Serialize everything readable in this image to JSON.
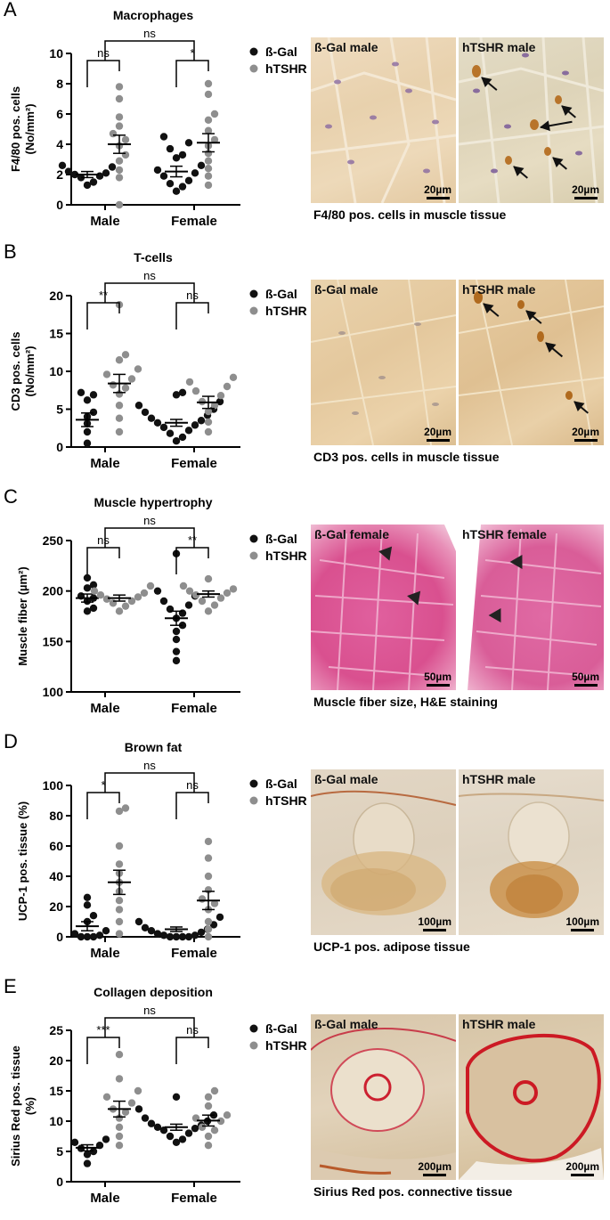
{
  "colors": {
    "bgal": "#111111",
    "htshr": "#8e8e8e"
  },
  "panels": [
    {
      "letter": "A",
      "images": {
        "left_label": "ß-Gal male",
        "right_label": "hTSHR male",
        "left_scale": "20µm",
        "right_scale": "20µm",
        "caption": "F4/80 pos. cells in muscle tissue"
      },
      "chart": {
        "type": "scatter",
        "title": "Macrophages",
        "ylabel": "F4/80 pos. cells\n(No/mm²)",
        "ylim": [
          0,
          10
        ],
        "yticks": [
          0,
          2,
          4,
          6,
          8,
          10
        ],
        "categories": [
          "Male",
          "Female"
        ],
        "legend": [
          "ß-Gal",
          "hTSHR"
        ],
        "series": [
          {
            "name": "ß-Gal",
            "values": [
              [
                1.3,
                1.5,
                1.8,
                1.9,
                2.0,
                2.1,
                2.2,
                2.5,
                2.6
              ],
              [
                0.9,
                1.2,
                1.4,
                1.6,
                1.9,
                2.1,
                2.3,
                2.6,
                3.1,
                3.3,
                3.7,
                4.1,
                4.5
              ]
            ],
            "mean": [
              2.0,
              2.2
            ],
            "sem": [
              0.2,
              0.35
            ]
          },
          {
            "name": "hTSHR",
            "values": [
              [
                0.0,
                1.8,
                2.3,
                2.9,
                3.3,
                3.9,
                4.3,
                4.7,
                5.2,
                5.8,
                7.0,
                7.8
              ],
              [
                1.3,
                1.9,
                2.4,
                2.9,
                3.4,
                3.9,
                4.3,
                4.9,
                5.6,
                6.0,
                7.3,
                8.0
              ]
            ],
            "mean": [
              4.0,
              4.1
            ],
            "sem": [
              0.6,
              0.6
            ]
          }
        ],
        "significance": [
          {
            "label": "ns",
            "between": "Male"
          },
          {
            "label": "*",
            "between": "Female"
          },
          {
            "label": "ns",
            "between": "Male-Female"
          }
        ]
      }
    },
    {
      "letter": "B",
      "images": {
        "left_label": "ß-Gal male",
        "right_label": "hTSHR male",
        "left_scale": "20µm",
        "right_scale": "20µm",
        "caption": "CD3 pos. cells in muscle tissue"
      },
      "chart": {
        "type": "scatter",
        "title": "T-cells",
        "ylabel": "CD3 pos. cells\n(No/mm²)",
        "ylim": [
          0,
          20
        ],
        "yticks": [
          0,
          5,
          10,
          15,
          20
        ],
        "categories": [
          "Male",
          "Female"
        ],
        "legend": [
          "ß-Gal",
          "hTSHR"
        ],
        "series": [
          {
            "name": "ß-Gal",
            "values": [
              [
                0.5,
                2.0,
                3.1,
                4.0,
                4.6,
                6.2,
                6.9,
                7.2
              ],
              [
                0.8,
                1.3,
                1.8,
                2.2,
                2.6,
                2.9,
                3.2,
                3.5,
                3.8,
                4.2,
                4.6,
                5.0,
                5.5,
                6.0,
                6.9,
                7.2
              ]
            ],
            "mean": [
              3.6,
              3.2
            ],
            "sem": [
              0.9,
              0.45
            ]
          },
          {
            "name": "hTSHR",
            "values": [
              [
                2.0,
                3.8,
                5.5,
                7.0,
                7.8,
                8.2,
                9.0,
                9.6,
                10.3,
                11.5,
                12.2,
                18.8
              ],
              [
                2.0,
                3.3,
                4.7,
                5.5,
                6.0,
                6.8,
                7.4,
                8.0,
                8.6,
                9.2
              ]
            ],
            "mean": [
              8.4,
              5.9
            ],
            "sem": [
              1.2,
              0.8
            ]
          }
        ],
        "significance": [
          {
            "label": "**",
            "between": "Male"
          },
          {
            "label": "ns",
            "between": "Female"
          },
          {
            "label": "ns",
            "between": "Male-Female"
          }
        ]
      }
    },
    {
      "letter": "C",
      "images": {
        "left_label": "ß-Gal female",
        "right_label": "hTSHR female",
        "left_scale": "50µm",
        "right_scale": "50µm",
        "caption": "Muscle fiber size, H&E staining"
      },
      "chart": {
        "type": "scatter",
        "title": "Muscle hypertrophy",
        "ylabel": "Muscle fiber (µm²)",
        "ylim": [
          100,
          250
        ],
        "yticks": [
          100,
          150,
          200,
          250
        ],
        "categories": [
          "Male",
          "Female"
        ],
        "legend": [
          "ß-Gal",
          "hTSHR"
        ],
        "series": [
          {
            "name": "ß-Gal",
            "values": [
              [
                180,
                183,
                190,
                193,
                195,
                203,
                206,
                213
              ],
              [
                131,
                140,
                152,
                160,
                166,
                173,
                178,
                182,
                186,
                190,
                195,
                200,
                237
              ]
            ],
            "mean": [
              193,
              173
            ],
            "sem": [
              4,
              7
            ]
          },
          {
            "name": "hTSHR",
            "values": [
              [
                180,
                185,
                188,
                190,
                192,
                194,
                196,
                198,
                200,
                205
              ],
              [
                180,
                186,
                190,
                193,
                196,
                198,
                200,
                202,
                205,
                212
              ]
            ],
            "mean": [
              193,
              197
            ],
            "sem": [
              3,
              3
            ]
          }
        ],
        "significance": [
          {
            "label": "ns",
            "between": "Male"
          },
          {
            "label": "**",
            "between": "Female"
          },
          {
            "label": "ns",
            "between": "Male-Female"
          }
        ]
      }
    },
    {
      "letter": "D",
      "images": {
        "left_label": "ß-Gal male",
        "right_label": "hTSHR male",
        "left_scale": "100µm",
        "right_scale": "100µm",
        "caption": "UCP-1 pos. adipose tissue"
      },
      "chart": {
        "type": "scatter",
        "title": "Brown fat",
        "ylabel": "UCP-1 pos. tissue (%)",
        "ylim": [
          0,
          100
        ],
        "yticks": [
          0,
          20,
          40,
          60,
          80,
          100
        ],
        "categories": [
          "Male",
          "Female"
        ],
        "legend": [
          "ß-Gal",
          "hTSHR"
        ],
        "series": [
          {
            "name": "ß-Gal",
            "values": [
              [
                0,
                0,
                0,
                1,
                2,
                4,
                10,
                14,
                21,
                26
              ],
              [
                0,
                0,
                0,
                0,
                1,
                1,
                2,
                3,
                4,
                5,
                6,
                8,
                10,
                13
              ]
            ],
            "mean": [
              7,
              5
            ],
            "sem": [
              3,
              1.5
            ]
          },
          {
            "name": "hTSHR",
            "values": [
              [
                2,
                10,
                18,
                24,
                30,
                36,
                42,
                48,
                60,
                83,
                85
              ],
              [
                0,
                5,
                10,
                18,
                22,
                25,
                31,
                40,
                52,
                63
              ]
            ],
            "mean": [
              36,
              24
            ],
            "sem": [
              8,
              6
            ]
          }
        ],
        "significance": [
          {
            "label": "*",
            "between": "Male"
          },
          {
            "label": "ns",
            "between": "Female"
          },
          {
            "label": "ns",
            "between": "Male-Female"
          }
        ]
      }
    },
    {
      "letter": "E",
      "images": {
        "left_label": "ß-Gal male",
        "right_label": "hTSHR male",
        "left_scale": "200µm",
        "right_scale": "200µm",
        "caption": "Sirius Red pos. connective tissue"
      },
      "chart": {
        "type": "scatter",
        "title": "Collagen deposition",
        "ylabel": "Sirius Red pos. tissue\n(%)",
        "ylim": [
          0,
          25
        ],
        "yticks": [
          0,
          5,
          10,
          15,
          20,
          25
        ],
        "categories": [
          "Male",
          "Female"
        ],
        "legend": [
          "ß-Gal",
          "hTSHR"
        ],
        "series": [
          {
            "name": "ß-Gal",
            "values": [
              [
                3.0,
                4.5,
                5.0,
                5.5,
                6.0,
                6.5,
                7.0
              ],
              [
                6.5,
                7.0,
                7.5,
                8.0,
                8.5,
                8.8,
                9.0,
                9.3,
                9.6,
                10.0,
                10.5,
                11.0,
                12.0,
                14.0
              ]
            ],
            "mean": [
              5.6,
              9.0
            ],
            "sem": [
              0.5,
              0.5
            ]
          },
          {
            "name": "hTSHR",
            "values": [
              [
                6.0,
                7.5,
                9.0,
                10.5,
                11.5,
                12.0,
                13.0,
                14.0,
                15.0,
                17.0,
                21.0
              ],
              [
                6.0,
                7.5,
                8.5,
                9.0,
                10.0,
                10.5,
                11.0,
                12.5,
                14.0,
                15.0
              ]
            ],
            "mean": [
              12.0,
              10.1
            ],
            "sem": [
              1.3,
              0.9
            ]
          }
        ],
        "significance": [
          {
            "label": "***",
            "between": "Male"
          },
          {
            "label": "ns",
            "between": "Female"
          },
          {
            "label": "ns",
            "between": "Male-Female"
          }
        ]
      }
    }
  ]
}
